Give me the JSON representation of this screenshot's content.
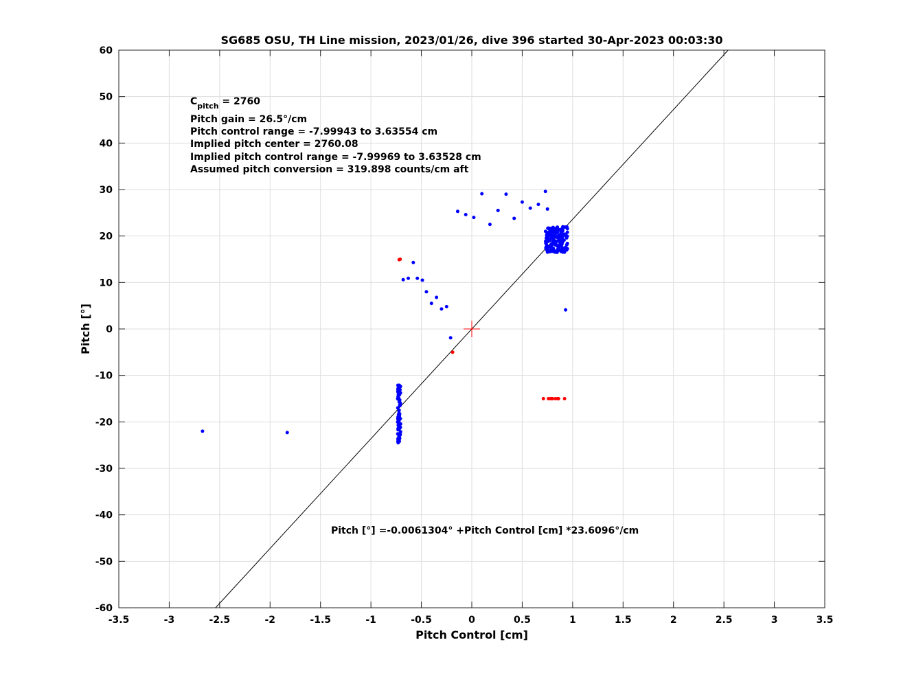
{
  "chart_data": {
    "type": "scatter",
    "title": "SG685 OSU, TH Line mission, 2023/01/26, dive 396 started 30-Apr-2023 00:03:30",
    "xlabel": "Pitch Control [cm]",
    "ylabel": "Pitch [°]",
    "xlim": [
      -3.5,
      3.5
    ],
    "ylim": [
      -60,
      60
    ],
    "xticks": [
      -3.5,
      -3,
      -2.5,
      -2,
      -1.5,
      -1,
      -0.5,
      0,
      0.5,
      1,
      1.5,
      2,
      2.5,
      3,
      3.5
    ],
    "xtick_labels": [
      "-3.5",
      "-3",
      "-2.5",
      "-2",
      "-1.5",
      "-1",
      "-0.5",
      "0",
      "0.5",
      "1",
      "1.5",
      "2",
      "2.5",
      "3",
      "3.5"
    ],
    "yticks": [
      -60,
      -50,
      -40,
      -30,
      -20,
      -10,
      0,
      10,
      20,
      30,
      40,
      50,
      60
    ],
    "ytick_labels": [
      "-60",
      "-50",
      "-40",
      "-30",
      "-20",
      "-10",
      "0",
      "10",
      "20",
      "30",
      "40",
      "50",
      "60"
    ],
    "grid": true,
    "annotations": {
      "c_pitch_main": "C",
      "c_pitch_sub": "pitch",
      "c_pitch_value": " = 2760",
      "pitch_gain": "Pitch gain = 26.5°/cm",
      "control_range": "Pitch control range = -7.99943 to 3.63554 cm",
      "implied_center": "Implied pitch center = 2760.08",
      "implied_range": "Implied pitch control range = -7.99969 to 3.63528 cm",
      "conversion": "Assumed pitch conversion = 319.898 counts/cm aft",
      "fit_equation": "Pitch [°] =-0.0061304° +Pitch Control [cm] *23.6096°/cm"
    },
    "fit_line": {
      "intercept": -0.0061304,
      "slope": 23.6096,
      "color": "#000000"
    },
    "center_marker": {
      "x": 0,
      "y": 0,
      "color": "#ff0000"
    },
    "series": [
      {
        "color": "#0000ff",
        "points": [
          [
            -2.67,
            -22.0
          ],
          [
            -1.83,
            -22.3
          ],
          [
            -0.68,
            10.6
          ],
          [
            -0.63,
            10.9
          ],
          [
            -0.58,
            14.3
          ],
          [
            -0.54,
            10.9
          ],
          [
            -0.49,
            10.5
          ],
          [
            -0.45,
            8.0
          ],
          [
            -0.4,
            5.5
          ],
          [
            -0.35,
            6.8
          ],
          [
            -0.3,
            4.3
          ],
          [
            -0.25,
            4.8
          ],
          [
            -0.21,
            -1.9
          ],
          [
            -0.14,
            25.3
          ],
          [
            -0.06,
            24.6
          ],
          [
            0.02,
            24.0
          ],
          [
            0.1,
            29.1
          ],
          [
            0.18,
            22.5
          ],
          [
            0.26,
            25.5
          ],
          [
            0.34,
            29.0
          ],
          [
            0.42,
            23.8
          ],
          [
            0.5,
            27.3
          ],
          [
            0.58,
            26.0
          ],
          [
            0.66,
            26.8
          ],
          [
            0.73,
            29.6
          ],
          [
            0.75,
            25.8
          ],
          [
            0.93,
            4.1
          ]
        ],
        "clusters": [
          {
            "x": -0.72,
            "x_spread": 0.015,
            "y_from": -24.5,
            "y_to": -12.0,
            "count": 90
          },
          {
            "x": 0.84,
            "x_spread": 0.11,
            "y_from": 16.5,
            "y_to": 22.0,
            "count": 160
          }
        ]
      },
      {
        "color": "#ff0000",
        "points": [
          [
            -0.71,
            15.0
          ],
          [
            -0.72,
            14.9
          ],
          [
            -0.19,
            -5.0
          ],
          [
            0.71,
            -15.0
          ],
          [
            0.76,
            -15.0
          ],
          [
            0.78,
            -15.0
          ],
          [
            0.79,
            -15.0
          ],
          [
            0.8,
            -15.0
          ],
          [
            0.83,
            -15.0
          ],
          [
            0.85,
            -15.0
          ],
          [
            0.86,
            -15.0
          ],
          [
            0.92,
            -15.0
          ]
        ]
      }
    ]
  }
}
